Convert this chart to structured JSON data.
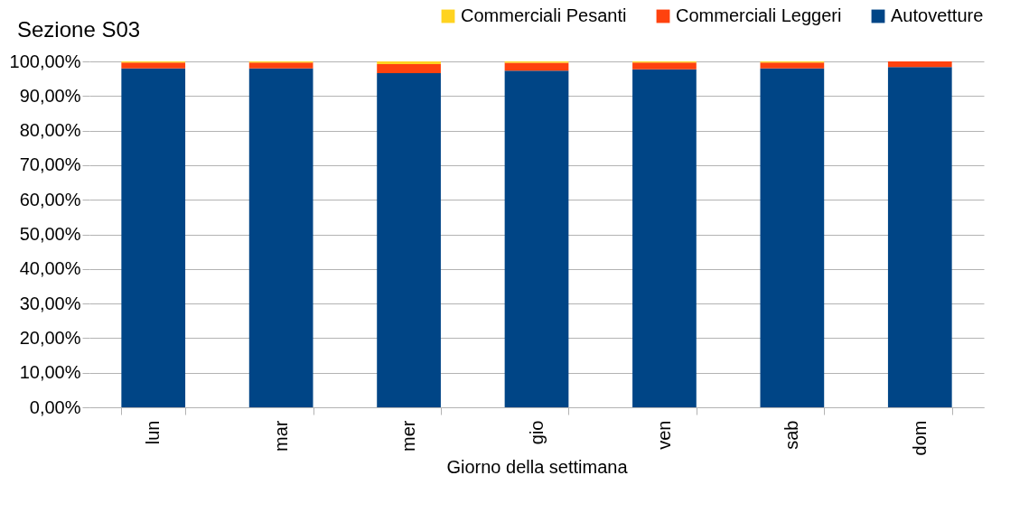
{
  "chart_data": {
    "type": "bar",
    "title": "Sezione S03",
    "xlabel": "Giorno della settimana",
    "categories": [
      "lun",
      "mar",
      "mer",
      "gio",
      "ven",
      "sab",
      "dom"
    ],
    "stacked": true,
    "series": [
      {
        "name": "Autovetture",
        "color": "#004586",
        "values": [
          98.0,
          98.0,
          96.6,
          97.3,
          97.7,
          98.0,
          98.4
        ]
      },
      {
        "name": "Commerciali Leggeri",
        "color": "#ff420e",
        "values": [
          1.7,
          1.7,
          2.6,
          2.3,
          2.0,
          1.7,
          1.6
        ]
      },
      {
        "name": "Commerciali Pesanti",
        "color": "#ffd320",
        "values": [
          0.3,
          0.3,
          0.8,
          0.4,
          0.3,
          0.3,
          0.0
        ]
      }
    ],
    "ylim": [
      0,
      100
    ],
    "yticks": [
      {
        "value": 0,
        "label": "0,00%"
      },
      {
        "value": 10,
        "label": "10,00%"
      },
      {
        "value": 20,
        "label": "20,00%"
      },
      {
        "value": 30,
        "label": "30,00%"
      },
      {
        "value": 40,
        "label": "40,00%"
      },
      {
        "value": 50,
        "label": "50,00%"
      },
      {
        "value": 60,
        "label": "60,00%"
      },
      {
        "value": 70,
        "label": "70,00%"
      },
      {
        "value": 80,
        "label": "80,00%"
      },
      {
        "value": 90,
        "label": "90,00%"
      },
      {
        "value": 100,
        "label": "100,00%"
      }
    ],
    "grid": "y",
    "legend": "top"
  }
}
